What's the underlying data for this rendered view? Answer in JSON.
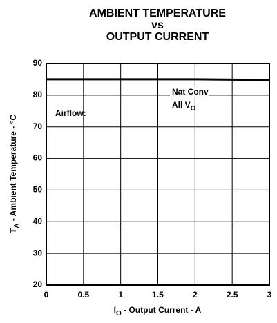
{
  "chart_data": {
    "type": "line",
    "title": [
      "AMBIENT TEMPERATURE",
      "vs",
      "OUTPUT CURRENT"
    ],
    "xlabel": [
      "I",
      "O",
      " - Output Current - A"
    ],
    "ylabel": [
      "T",
      "A",
      " - Ambient Temperature - °C"
    ],
    "annotations": [
      [
        "Nat Conv"
      ],
      [
        "All V",
        "O"
      ],
      [
        "Airflow:"
      ]
    ],
    "x": [
      0,
      0.5,
      1,
      1.5,
      2,
      2.5,
      3
    ],
    "series": [
      {
        "color": "#000000",
        "values": [
          85,
          85,
          85,
          85,
          85,
          84.9,
          84.8
        ]
      }
    ],
    "xlim": [
      0,
      3
    ],
    "xticks": [
      0,
      0.5,
      1,
      1.5,
      2,
      2.5,
      3
    ],
    "ylim": [
      20,
      90
    ],
    "yticks": [
      20,
      30,
      40,
      50,
      60,
      70,
      80,
      90
    ],
    "grid": true
  }
}
